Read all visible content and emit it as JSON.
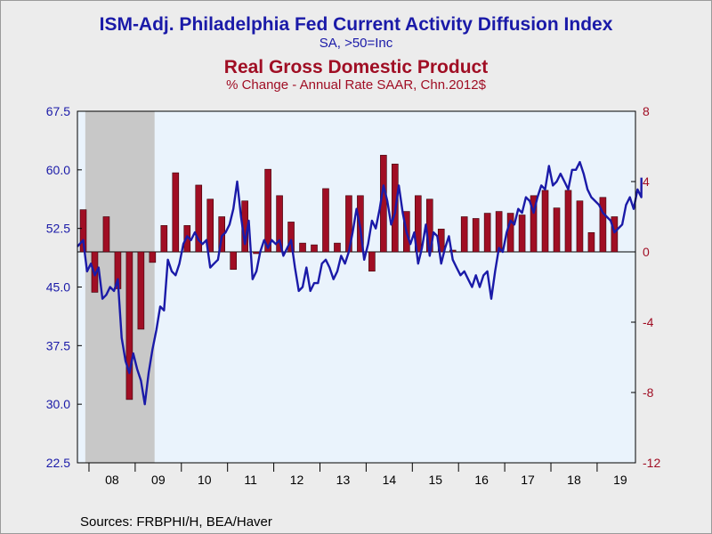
{
  "titles": {
    "line1": "ISM-Adj. Philadelphia Fed Current Activity Diffusion Index",
    "line2": "SA, >50=Inc",
    "line3": "Real Gross Domestic Product",
    "line4": "% Change - Annual Rate    SAAR, Chn.2012$"
  },
  "source": "Sources:  FRBPHI/H, BEA/Haver",
  "colors": {
    "line": "#1a1aa8",
    "bar": "#a00e24",
    "plot_bg": "#eaf3fc",
    "recession": "#c8c8c8"
  },
  "chart_data": {
    "type": "bar+line",
    "x_tick_labels": [
      "08",
      "09",
      "10",
      "11",
      "12",
      "13",
      "14",
      "15",
      "16",
      "17",
      "18",
      "19"
    ],
    "x_range": [
      2007.75,
      2019.83
    ],
    "recession": [
      2007.92,
      2009.42
    ],
    "left_axis": {
      "min": 22.5,
      "max": 67.5,
      "ticks": [
        "22.5",
        "30.0",
        "37.5",
        "45.0",
        "52.5",
        "60.0",
        "67.5"
      ]
    },
    "right_axis": {
      "min": -12,
      "max": 8,
      "zero": 0,
      "ticks": [
        "-12",
        "-8",
        "-4",
        "0",
        "4",
        "8"
      ]
    },
    "bars": {
      "series": "Real Gross Domestic Product",
      "quarters": [
        [
          2007.875,
          2.4
        ],
        [
          2008.125,
          -2.3
        ],
        [
          2008.375,
          2.0
        ],
        [
          2008.625,
          -2.1
        ],
        [
          2008.875,
          -8.4
        ],
        [
          2009.125,
          -4.4
        ],
        [
          2009.375,
          -0.6
        ],
        [
          2009.625,
          1.5
        ],
        [
          2009.875,
          4.5
        ],
        [
          2010.125,
          1.5
        ],
        [
          2010.375,
          3.8
        ],
        [
          2010.625,
          3.0
        ],
        [
          2010.875,
          2.0
        ],
        [
          2011.125,
          -1.0
        ],
        [
          2011.375,
          2.9
        ],
        [
          2011.625,
          -0.1
        ],
        [
          2011.875,
          4.7
        ],
        [
          2012.125,
          3.2
        ],
        [
          2012.375,
          1.7
        ],
        [
          2012.625,
          0.5
        ],
        [
          2012.875,
          0.4
        ],
        [
          2013.125,
          3.6
        ],
        [
          2013.375,
          0.5
        ],
        [
          2013.625,
          3.2
        ],
        [
          2013.875,
          3.2
        ],
        [
          2014.125,
          -1.1
        ],
        [
          2014.375,
          5.5
        ],
        [
          2014.625,
          5.0
        ],
        [
          2014.875,
          2.3
        ],
        [
          2015.125,
          3.2
        ],
        [
          2015.375,
          3.0
        ],
        [
          2015.625,
          1.3
        ],
        [
          2015.875,
          0.1
        ],
        [
          2016.125,
          2.0
        ],
        [
          2016.375,
          1.9
        ],
        [
          2016.625,
          2.2
        ],
        [
          2016.875,
          2.3
        ],
        [
          2017.125,
          2.2
        ],
        [
          2017.375,
          2.1
        ],
        [
          2017.625,
          3.2
        ],
        [
          2017.875,
          3.5
        ],
        [
          2018.125,
          2.5
        ],
        [
          2018.375,
          3.5
        ],
        [
          2018.625,
          2.9
        ],
        [
          2018.875,
          1.1
        ],
        [
          2019.125,
          3.1
        ],
        [
          2019.375,
          2.0
        ]
      ]
    },
    "line": {
      "series": "ISM-Adj. Philadelphia Fed Current Activity Diffusion Index",
      "points": [
        [
          2007.75,
          50.2
        ],
        [
          2007.875,
          51.0
        ],
        [
          2007.958,
          47.0
        ],
        [
          2008.042,
          48.0
        ],
        [
          2008.125,
          46.5
        ],
        [
          2008.208,
          47.5
        ],
        [
          2008.292,
          43.5
        ],
        [
          2008.375,
          44.0
        ],
        [
          2008.458,
          45.0
        ],
        [
          2008.542,
          44.5
        ],
        [
          2008.625,
          46.0
        ],
        [
          2008.708,
          38.5
        ],
        [
          2008.792,
          35.5
        ],
        [
          2008.875,
          34.0
        ],
        [
          2008.958,
          36.5
        ],
        [
          2009.042,
          34.5
        ],
        [
          2009.125,
          33.0
        ],
        [
          2009.208,
          30.0
        ],
        [
          2009.292,
          34.0
        ],
        [
          2009.375,
          37.0
        ],
        [
          2009.458,
          39.5
        ],
        [
          2009.542,
          42.5
        ],
        [
          2009.625,
          42.0
        ],
        [
          2009.708,
          48.5
        ],
        [
          2009.792,
          47.0
        ],
        [
          2009.875,
          46.5
        ],
        [
          2009.958,
          48.0
        ],
        [
          2010.042,
          50.5
        ],
        [
          2010.125,
          51.5
        ],
        [
          2010.208,
          51.0
        ],
        [
          2010.292,
          52.0
        ],
        [
          2010.375,
          51.0
        ],
        [
          2010.458,
          50.5
        ],
        [
          2010.542,
          51.0
        ],
        [
          2010.625,
          47.5
        ],
        [
          2010.708,
          48.0
        ],
        [
          2010.792,
          48.5
        ],
        [
          2010.875,
          51.5
        ],
        [
          2010.958,
          52.0
        ],
        [
          2011.042,
          53.0
        ],
        [
          2011.125,
          55.0
        ],
        [
          2011.208,
          58.5
        ],
        [
          2011.292,
          54.0
        ],
        [
          2011.375,
          50.5
        ],
        [
          2011.458,
          53.5
        ],
        [
          2011.542,
          46.0
        ],
        [
          2011.625,
          47.0
        ],
        [
          2011.708,
          49.5
        ],
        [
          2011.792,
          51.0
        ],
        [
          2011.875,
          50.0
        ],
        [
          2011.958,
          51.0
        ],
        [
          2012.042,
          50.5
        ],
        [
          2012.125,
          51.0
        ],
        [
          2012.208,
          49.0
        ],
        [
          2012.292,
          50.0
        ],
        [
          2012.375,
          51.0
        ],
        [
          2012.458,
          47.5
        ],
        [
          2012.542,
          44.5
        ],
        [
          2012.625,
          45.0
        ],
        [
          2012.708,
          47.5
        ],
        [
          2012.792,
          44.5
        ],
        [
          2012.875,
          45.5
        ],
        [
          2012.958,
          45.5
        ],
        [
          2013.042,
          48.0
        ],
        [
          2013.125,
          48.5
        ],
        [
          2013.208,
          47.5
        ],
        [
          2013.292,
          46.0
        ],
        [
          2013.375,
          47.0
        ],
        [
          2013.458,
          49.0
        ],
        [
          2013.542,
          48.0
        ],
        [
          2013.625,
          49.5
        ],
        [
          2013.708,
          52.0
        ],
        [
          2013.792,
          55.0
        ],
        [
          2013.875,
          52.5
        ],
        [
          2013.958,
          48.5
        ],
        [
          2014.042,
          50.5
        ],
        [
          2014.125,
          53.5
        ],
        [
          2014.208,
          52.5
        ],
        [
          2014.292,
          55.0
        ],
        [
          2014.375,
          58.0
        ],
        [
          2014.458,
          56.0
        ],
        [
          2014.542,
          53.0
        ],
        [
          2014.625,
          54.5
        ],
        [
          2014.708,
          58.0
        ],
        [
          2014.792,
          54.5
        ],
        [
          2014.875,
          52.0
        ],
        [
          2014.958,
          50.5
        ],
        [
          2015.042,
          52.0
        ],
        [
          2015.125,
          48.0
        ],
        [
          2015.208,
          50.0
        ],
        [
          2015.292,
          53.0
        ],
        [
          2015.375,
          49.0
        ],
        [
          2015.458,
          52.0
        ],
        [
          2015.542,
          51.5
        ],
        [
          2015.625,
          48.0
        ],
        [
          2015.708,
          50.0
        ],
        [
          2015.792,
          51.5
        ],
        [
          2015.875,
          48.5
        ],
        [
          2015.958,
          47.5
        ],
        [
          2016.042,
          46.5
        ],
        [
          2016.125,
          47.0
        ],
        [
          2016.208,
          46.0
        ],
        [
          2016.292,
          45.0
        ],
        [
          2016.375,
          46.5
        ],
        [
          2016.458,
          45.0
        ],
        [
          2016.542,
          46.5
        ],
        [
          2016.625,
          47.0
        ],
        [
          2016.708,
          43.5
        ],
        [
          2016.792,
          47.0
        ],
        [
          2016.875,
          50.0
        ],
        [
          2016.958,
          49.5
        ],
        [
          2017.042,
          52.0
        ],
        [
          2017.125,
          53.5
        ],
        [
          2017.208,
          53.0
        ],
        [
          2017.292,
          55.0
        ],
        [
          2017.375,
          54.5
        ],
        [
          2017.458,
          56.5
        ],
        [
          2017.542,
          56.0
        ],
        [
          2017.625,
          54.5
        ],
        [
          2017.708,
          56.5
        ],
        [
          2017.792,
          58.0
        ],
        [
          2017.875,
          57.5
        ],
        [
          2017.958,
          60.5
        ],
        [
          2018.042,
          58.0
        ],
        [
          2018.125,
          58.5
        ],
        [
          2018.208,
          59.5
        ],
        [
          2018.292,
          58.5
        ],
        [
          2018.375,
          57.5
        ],
        [
          2018.458,
          60.0
        ],
        [
          2018.542,
          60.0
        ],
        [
          2018.625,
          61.0
        ],
        [
          2018.708,
          59.5
        ],
        [
          2018.792,
          57.5
        ],
        [
          2018.875,
          56.5
        ],
        [
          2018.958,
          56.0
        ],
        [
          2019.042,
          55.5
        ],
        [
          2019.125,
          54.5
        ],
        [
          2019.208,
          54.0
        ],
        [
          2019.292,
          53.5
        ],
        [
          2019.375,
          52.0
        ],
        [
          2019.458,
          52.5
        ],
        [
          2019.542,
          53.0
        ],
        [
          2019.625,
          55.5
        ],
        [
          2019.708,
          56.5
        ],
        [
          2019.792,
          55.0
        ],
        [
          2019.875,
          57.5
        ],
        [
          2019.958,
          56.5
        ],
        [
          2019.96,
          59.0
        ]
      ]
    }
  }
}
